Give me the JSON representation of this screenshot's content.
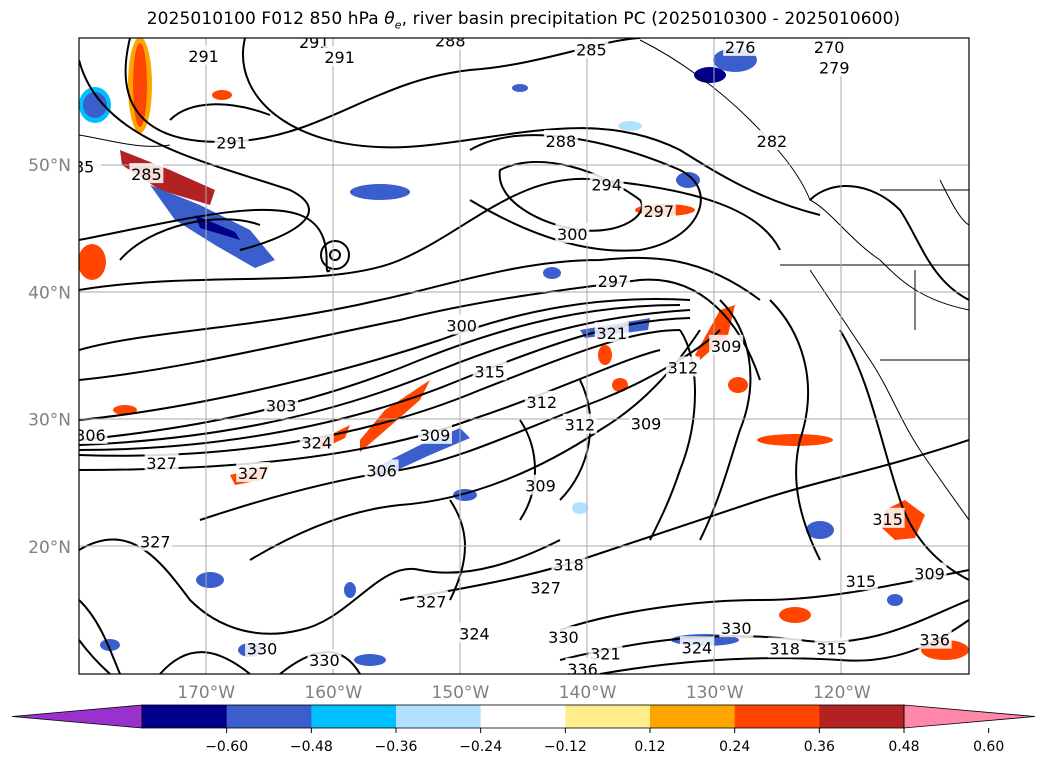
{
  "chart_data": {
    "type": "map-contour",
    "title": "2025010100 F012 850 hPa θe, river basin precipitation PC (2025010300 - 2025010600)",
    "title_prefix": "2025010100 F012 850 hPa ",
    "title_symbol": "θe",
    "title_suffix": ", river basin precipitation PC (2025010300 - 2025010600)",
    "lon_range": [
      -180,
      -110
    ],
    "lat_range": [
      10,
      60
    ],
    "lat_ticks": [
      {
        "value": 50,
        "label": "50°N"
      },
      {
        "value": 40,
        "label": "40°N"
      },
      {
        "value": 30,
        "label": "30°N"
      },
      {
        "value": 20,
        "label": "20°N"
      }
    ],
    "lon_ticks": [
      {
        "value": -170,
        "label": "170°W"
      },
      {
        "value": -160,
        "label": "160°W"
      },
      {
        "value": -150,
        "label": "150°W"
      },
      {
        "value": -140,
        "label": "140°W"
      },
      {
        "value": -130,
        "label": "130°W"
      },
      {
        "value": -120,
        "label": "120°W"
      }
    ],
    "grid": true,
    "colorbar": {
      "placement": "bottom",
      "extend": "both",
      "colors": [
        "#9932cc",
        "#00008b",
        "#3a5fcd",
        "#00bfff",
        "#b0e2ff",
        "#ffffff",
        "#ffec8b",
        "#ffa500",
        "#ff4500",
        "#b22222",
        "#ff88aa"
      ],
      "tick_values": [
        -0.6,
        -0.48,
        -0.36,
        -0.24,
        -0.12,
        0.12,
        0.24,
        0.36,
        0.48,
        0.6
      ],
      "tick_labels": [
        "−0.60",
        "−0.48",
        "−0.36",
        "−0.24",
        "−0.12",
        "0.12",
        "0.24",
        "0.36",
        "0.48",
        "0.60"
      ]
    },
    "contour_labels": [
      {
        "text": "291",
        "lon": -170.2,
        "lat": 58.6
      },
      {
        "text": "291",
        "lon": -161.5,
        "lat": 59.7
      },
      {
        "text": "288",
        "lon": -150.8,
        "lat": 59.8
      },
      {
        "text": "285",
        "lon": -139.7,
        "lat": 59.1
      },
      {
        "text": "291",
        "lon": -159.5,
        "lat": 58.5
      },
      {
        "text": "291",
        "lon": -168.0,
        "lat": 51.8
      },
      {
        "text": "285",
        "lon": -174.7,
        "lat": 49.3
      },
      {
        "text": "85",
        "lon": -179.6,
        "lat": 49.9
      },
      {
        "text": "288",
        "lon": -142.1,
        "lat": 51.9
      },
      {
        "text": "294",
        "lon": -138.5,
        "lat": 48.5
      },
      {
        "text": "300",
        "lon": -141.2,
        "lat": 44.6
      },
      {
        "text": "297",
        "lon": -134.4,
        "lat": 46.4
      },
      {
        "text": "297",
        "lon": -138.0,
        "lat": 40.9
      },
      {
        "text": "300",
        "lon": -149.9,
        "lat": 37.4
      },
      {
        "text": "321",
        "lon": -138.1,
        "lat": 36.8
      },
      {
        "text": "303",
        "lon": -164.1,
        "lat": 31.1
      },
      {
        "text": "306",
        "lon": -179.1,
        "lat": 28.8
      },
      {
        "text": "315",
        "lon": -147.7,
        "lat": 33.8
      },
      {
        "text": "312",
        "lon": -143.6,
        "lat": 31.4
      },
      {
        "text": "312",
        "lon": -140.6,
        "lat": 29.6
      },
      {
        "text": "309",
        "lon": -135.4,
        "lat": 29.7
      },
      {
        "text": "312",
        "lon": -132.5,
        "lat": 34.1
      },
      {
        "text": "309",
        "lon": -129.1,
        "lat": 35.8
      },
      {
        "text": "327",
        "lon": -173.5,
        "lat": 26.6
      },
      {
        "text": "324",
        "lon": -161.3,
        "lat": 28.2
      },
      {
        "text": "309",
        "lon": -152.0,
        "lat": 28.8
      },
      {
        "text": "306",
        "lon": -156.2,
        "lat": 26.0
      },
      {
        "text": "327",
        "lon": -166.3,
        "lat": 25.8
      },
      {
        "text": "309",
        "lon": -143.7,
        "lat": 24.8
      },
      {
        "text": "327",
        "lon": -174.0,
        "lat": 20.4
      },
      {
        "text": "318",
        "lon": -141.5,
        "lat": 18.6
      },
      {
        "text": "327",
        "lon": -143.3,
        "lat": 16.8
      },
      {
        "text": "327",
        "lon": -152.3,
        "lat": 15.7
      },
      {
        "text": "324",
        "lon": -148.9,
        "lat": 13.2
      },
      {
        "text": "330",
        "lon": -141.9,
        "lat": 12.9
      },
      {
        "text": "315",
        "lon": -116.4,
        "lat": 22.2
      },
      {
        "text": "309",
        "lon": -113.1,
        "lat": 17.9
      },
      {
        "text": "315",
        "lon": -118.5,
        "lat": 17.3
      },
      {
        "text": "330",
        "lon": -128.3,
        "lat": 13.6
      },
      {
        "text": "324",
        "lon": -131.4,
        "lat": 12.1
      },
      {
        "text": "318",
        "lon": -124.5,
        "lat": 12.0
      },
      {
        "text": "315",
        "lon": -120.8,
        "lat": 12.0
      },
      {
        "text": "321",
        "lon": -138.6,
        "lat": 11.6
      },
      {
        "text": "336",
        "lon": -140.4,
        "lat": 10.4
      },
      {
        "text": "330",
        "lon": -165.6,
        "lat": 12.0
      },
      {
        "text": "330",
        "lon": -160.7,
        "lat": 11.1
      },
      {
        "text": "336",
        "lon": -112.7,
        "lat": 12.7
      },
      {
        "text": "282",
        "lon": -125.5,
        "lat": 51.9
      },
      {
        "text": "279",
        "lon": -120.6,
        "lat": 57.7
      },
      {
        "text": "270",
        "lon": -121.0,
        "lat": 59.3
      },
      {
        "text": "276",
        "lon": -128.0,
        "lat": 59.3
      }
    ]
  }
}
